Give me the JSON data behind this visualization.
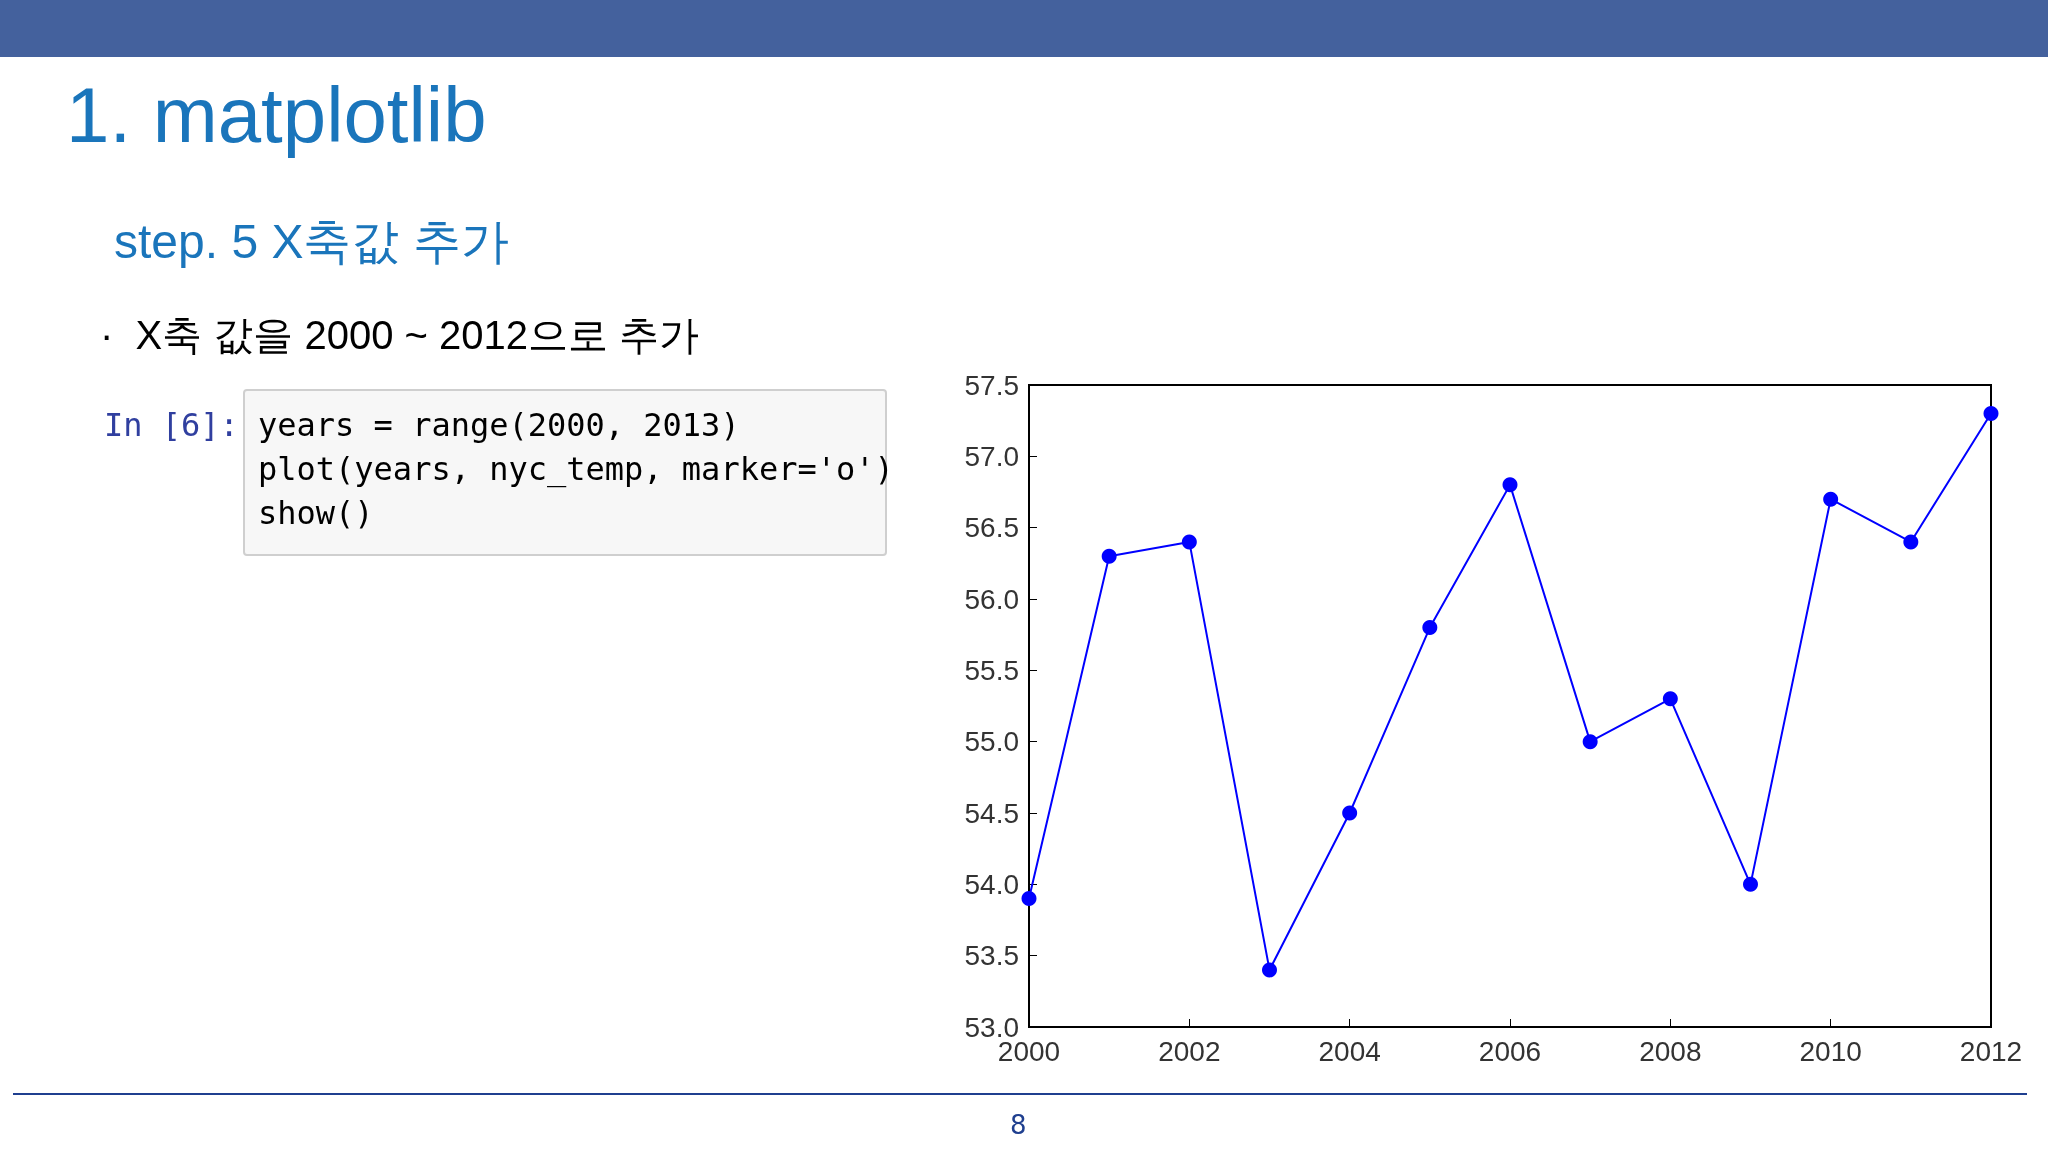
{
  "chart_data": {
    "type": "line",
    "title": "1. matplotlib",
    "subtitle": "step. 5 X축값 추가",
    "annotations": [
      "·  X축 값을 2000 ~ 2012으로 추가",
      "In [6]:",
      "years = range(2000, 2013)",
      "plot(years, nyc_temp, marker='o')",
      "show()",
      "8"
    ],
    "x": [
      2000,
      2001,
      2002,
      2003,
      2004,
      2005,
      2006,
      2007,
      2008,
      2009,
      2010,
      2011,
      2012
    ],
    "series": [
      {
        "color": "#0000ff",
        "values": [
          53.9,
          56.3,
          56.4,
          53.4,
          54.5,
          55.8,
          56.8,
          55.0,
          55.3,
          54.0,
          56.7,
          56.4,
          57.3
        ]
      }
    ],
    "xlim": [
      2000,
      2012
    ],
    "xticks": [
      2000,
      2002,
      2004,
      2006,
      2008,
      2010,
      2012
    ],
    "ylim": [
      53,
      57.5
    ],
    "yticks": [
      {
        "value": 53,
        "label": "53.0"
      },
      53.5,
      {
        "value": 54,
        "label": "54.0"
      },
      54.5,
      {
        "value": 55,
        "label": "55.0"
      },
      55.5,
      {
        "value": 56,
        "label": "56.0"
      },
      56.5,
      {
        "value": 57,
        "label": "57.0"
      },
      57.5
    ],
    "grid": false,
    "marker": "circle",
    "line_style": "solid"
  }
}
